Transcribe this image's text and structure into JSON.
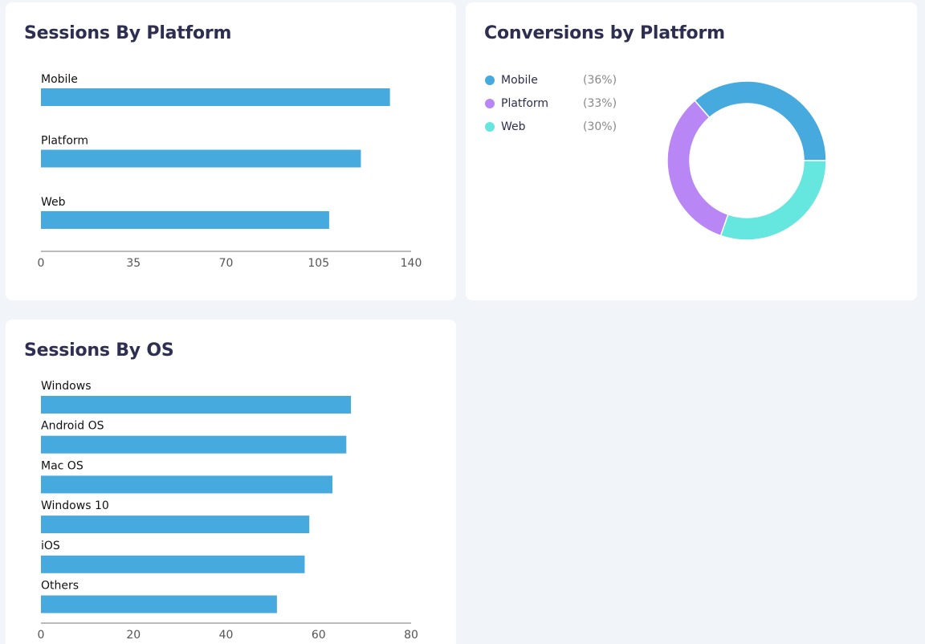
{
  "colors": {
    "bar": "#46aadf",
    "axis": "#777777",
    "mobile": "#46aadf",
    "platform": "#b886f5",
    "web": "#65e6de"
  },
  "chart_data": [
    {
      "id": "sessions-by-platform",
      "type": "bar",
      "orientation": "horizontal",
      "title": "Sessions By Platform",
      "categories": [
        "Mobile",
        "Platform",
        "Web"
      ],
      "values": [
        132,
        121,
        109
      ],
      "xlim": [
        0,
        140
      ],
      "xticks": [
        "0",
        "35",
        "70",
        "105",
        "140"
      ],
      "xlabel": "",
      "ylabel": "",
      "grid": false
    },
    {
      "id": "conversions-by-platform",
      "type": "pie",
      "donut": true,
      "title": "Conversions by Platform",
      "legend_position": "top-left",
      "slices": [
        {
          "label": "Mobile",
          "value": 36,
          "pct_label": "(36%)",
          "color": "#46aadf"
        },
        {
          "label": "Platform",
          "value": 33,
          "pct_label": "(33%)",
          "color": "#b886f5"
        },
        {
          "label": "Web",
          "value": 30,
          "pct_label": "(30%)",
          "color": "#65e6de"
        }
      ]
    },
    {
      "id": "sessions-by-os",
      "type": "bar",
      "orientation": "horizontal",
      "title": "Sessions By OS",
      "categories": [
        "Windows",
        "Android OS",
        "Mac OS",
        "Windows 10",
        "iOS",
        "Others"
      ],
      "values": [
        67,
        66,
        63,
        58,
        57,
        51
      ],
      "xlim": [
        0,
        80
      ],
      "xticks": [
        "0",
        "20",
        "40",
        "60",
        "80"
      ],
      "xlabel": "",
      "ylabel": "",
      "grid": false
    }
  ]
}
